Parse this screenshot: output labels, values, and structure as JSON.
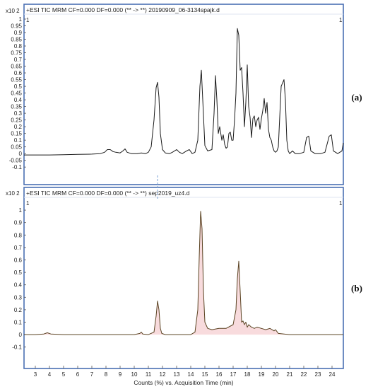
{
  "chart_data": [
    {
      "type": "line",
      "panel_label": "(a)",
      "header": "+ESI TIC MRM CF=0.000 DF=0.000 (** -> **) 20190909_06-3134spajk.d",
      "y_multiplier": "x10 2",
      "corner_left": "1",
      "corner_right": "1",
      "ylim": [
        -0.12,
        1.0
      ],
      "y_ticks": [
        "-0.1",
        "-0.05",
        "0",
        "0.05",
        "0.1",
        "0.15",
        "0.2",
        "0.25",
        "0.3",
        "0.35",
        "0.4",
        "0.45",
        "0.5",
        "0.55",
        "0.6",
        "0.65",
        "0.7",
        "0.75",
        "0.8",
        "0.85",
        "0.9",
        "0.95",
        "1"
      ],
      "xlim": [
        2.2,
        24.8
      ],
      "line_color": "#1a1a1a",
      "frame_color": "#4a6fb3",
      "series": [
        {
          "x": [
            2.2,
            3.0,
            4.0,
            5.0,
            6.0,
            7.0,
            7.6,
            7.9,
            8.1,
            8.3,
            8.5,
            8.7,
            9.0,
            9.2,
            9.35,
            9.5,
            9.8,
            10.2,
            10.5,
            10.8,
            11.0,
            11.2,
            11.4,
            11.55,
            11.65,
            11.75,
            11.85,
            12.0,
            12.2,
            12.5,
            12.7,
            13.0,
            13.2,
            13.4,
            13.7,
            13.9,
            14.1,
            14.3,
            14.5,
            14.65,
            14.75,
            14.85,
            15.0,
            15.2,
            15.5,
            15.65,
            15.75,
            15.85,
            15.95,
            16.05,
            16.2,
            16.3,
            16.4,
            16.5,
            16.6,
            16.7,
            16.8,
            16.9,
            17.0,
            17.1,
            17.2,
            17.3,
            17.4,
            17.5,
            17.6,
            17.7,
            17.8,
            17.9,
            18.0,
            18.1,
            18.2,
            18.3,
            18.4,
            18.5,
            18.6,
            18.7,
            18.8,
            18.9,
            19.0,
            19.1,
            19.2,
            19.3,
            19.4,
            19.5,
            19.6,
            19.7,
            19.8,
            19.9,
            20.0,
            20.1,
            20.2,
            20.4,
            20.6,
            20.7,
            20.8,
            20.9,
            21.0,
            21.2,
            21.4,
            21.7,
            22.0,
            22.2,
            22.35,
            22.5,
            22.8,
            23.2,
            23.5,
            23.8,
            23.95,
            24.1,
            24.4,
            24.7,
            24.8
          ],
          "y": [
            -0.01,
            -0.01,
            -0.01,
            -0.008,
            -0.006,
            -0.004,
            0.0,
            0.01,
            0.03,
            0.03,
            0.015,
            0.01,
            0.005,
            0.02,
            0.035,
            0.01,
            0.0,
            0.0,
            0.005,
            0.0,
            0.01,
            0.05,
            0.25,
            0.49,
            0.53,
            0.42,
            0.15,
            0.03,
            0.005,
            0.0,
            0.01,
            0.03,
            0.01,
            0.0,
            0.02,
            0.03,
            0.0,
            0.01,
            0.1,
            0.5,
            0.62,
            0.4,
            0.06,
            0.02,
            0.03,
            0.3,
            0.58,
            0.4,
            0.15,
            0.2,
            0.1,
            0.14,
            0.07,
            0.04,
            0.05,
            0.15,
            0.16,
            0.1,
            0.1,
            0.25,
            0.45,
            0.93,
            0.88,
            0.62,
            0.64,
            0.45,
            0.2,
            0.38,
            0.66,
            0.35,
            0.27,
            0.12,
            0.26,
            0.28,
            0.2,
            0.25,
            0.27,
            0.18,
            0.26,
            0.32,
            0.41,
            0.3,
            0.38,
            0.18,
            0.12,
            0.1,
            0.05,
            0.02,
            0.01,
            0.02,
            0.05,
            0.5,
            0.55,
            0.4,
            0.1,
            0.02,
            0.0,
            0.02,
            0.0,
            0.0,
            0.01,
            0.12,
            0.13,
            0.02,
            0.0,
            0.0,
            0.01,
            0.13,
            0.14,
            0.02,
            0.0,
            0.02,
            0.08
          ]
        }
      ]
    },
    {
      "type": "line",
      "panel_label": "(b)",
      "header": "+ESI TIC MRM CF=0.000 DF=0.000 (** -> **) sep2019_uz4.d",
      "y_multiplier": "x10 2",
      "corner_left": "1",
      "corner_right": "1",
      "ylim": [
        -0.13,
        1.08
      ],
      "y_ticks": [
        "-0.1",
        "0",
        "0.1",
        "0.2",
        "0.3",
        "0.4",
        "0.5",
        "0.6",
        "0.7",
        "0.8",
        "0.9",
        "1"
      ],
      "xlim": [
        2.2,
        24.8
      ],
      "x_ticks": [
        "3",
        "4",
        "5",
        "6",
        "7",
        "8",
        "9",
        "10",
        "11",
        "12",
        "13",
        "14",
        "15",
        "16",
        "17",
        "18",
        "19",
        "20",
        "21",
        "22",
        "23",
        "24"
      ],
      "xlabel": "Counts (%) vs. Acquisition Time (min)",
      "line_color": "#5a4322",
      "fill_color": "#f5cfd2",
      "frame_color": "#4a6fb3",
      "series": [
        {
          "x": [
            2.2,
            3.0,
            3.6,
            3.85,
            4.1,
            5.0,
            6.0,
            7.0,
            8.0,
            9.0,
            10.0,
            10.4,
            10.5,
            10.6,
            11.0,
            11.4,
            11.55,
            11.65,
            11.75,
            11.85,
            11.95,
            12.2,
            13.0,
            14.0,
            14.3,
            14.5,
            14.6,
            14.7,
            14.8,
            14.9,
            15.0,
            15.2,
            15.5,
            16.0,
            16.5,
            17.0,
            17.2,
            17.3,
            17.4,
            17.5,
            17.6,
            17.7,
            17.8,
            17.9,
            18.0,
            18.1,
            18.3,
            18.5,
            18.7,
            19.0,
            19.3,
            19.6,
            19.9,
            20.0,
            20.2,
            21.0,
            22.0,
            23.0,
            24.0,
            24.8
          ],
          "y": [
            0.0,
            0.0,
            0.005,
            0.015,
            0.005,
            0.0,
            0.0,
            0.0,
            0.0,
            0.0,
            0.0,
            0.01,
            0.02,
            0.005,
            0.0,
            0.02,
            0.15,
            0.27,
            0.2,
            0.05,
            0.01,
            0.0,
            0.0,
            0.0,
            0.02,
            0.2,
            0.62,
            0.99,
            0.85,
            0.35,
            0.1,
            0.05,
            0.04,
            0.05,
            0.05,
            0.08,
            0.2,
            0.45,
            0.59,
            0.35,
            0.1,
            0.11,
            0.08,
            0.1,
            0.06,
            0.08,
            0.06,
            0.05,
            0.06,
            0.05,
            0.04,
            0.05,
            0.03,
            0.04,
            0.01,
            0.0,
            0.0,
            0.0,
            0.0,
            0.0
          ]
        }
      ]
    }
  ]
}
